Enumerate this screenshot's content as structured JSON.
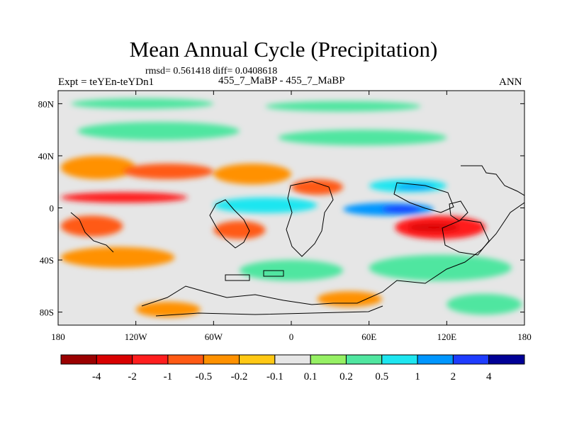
{
  "header": {
    "title": "Mean Annual Cycle (Precipitation)",
    "stats": "rmsd= 0.561418 diff= 0.0408618",
    "expt": "Expt = teYEn-teYDn1",
    "runs": "455_7_MaBP - 455_7_MaBP",
    "season": "ANN"
  },
  "chart_data": {
    "type": "heatmap",
    "title": "Mean Annual Cycle (Precipitation)",
    "subtitle": "rmsd= 0.561418 diff= 0.0408618",
    "xlabel": "",
    "ylabel": "",
    "xlim": [
      -180,
      180
    ],
    "ylim": [
      -90,
      90
    ],
    "x_ticks": [
      {
        "value": -180,
        "label": "180"
      },
      {
        "value": -120,
        "label": "120W"
      },
      {
        "value": -60,
        "label": "60W"
      },
      {
        "value": 0,
        "label": "0"
      },
      {
        "value": 60,
        "label": "60E"
      },
      {
        "value": 120,
        "label": "120E"
      },
      {
        "value": 180,
        "label": "180"
      }
    ],
    "y_ticks": [
      {
        "value": 80,
        "label": "80N"
      },
      {
        "value": 40,
        "label": "40N"
      },
      {
        "value": 0,
        "label": "0"
      },
      {
        "value": -40,
        "label": "40S"
      },
      {
        "value": -80,
        "label": "80S"
      }
    ],
    "colorbar": {
      "colors": [
        "#9a0000",
        "#d80000",
        "#ff1e1e",
        "#ff5a14",
        "#ff9100",
        "#ffc814",
        "#e6e6e6",
        "#96f064",
        "#50e6a0",
        "#1ee6f0",
        "#0096ff",
        "#1e3cff",
        "#000096"
      ],
      "labels": [
        "-4",
        "-2",
        "-1",
        "-0.5",
        "-0.2",
        "-0.1",
        "0.1",
        "0.2",
        "0.5",
        "1",
        "2",
        "4"
      ]
    },
    "regions": [
      {
        "name": "north-polar-green",
        "lon": [
          -170,
          -60
        ],
        "lat": [
          84,
          76
        ],
        "value": 0.3
      },
      {
        "name": "north-polar-green-east",
        "lon": [
          -20,
          100
        ],
        "lat": [
          82,
          74
        ],
        "value": 0.3
      },
      {
        "name": "north-midlat-green-1",
        "lon": [
          -165,
          -40
        ],
        "lat": [
          66,
          52
        ],
        "value": 0.25
      },
      {
        "name": "north-midlat-green-2",
        "lon": [
          -10,
          120
        ],
        "lat": [
          60,
          48
        ],
        "value": 0.25
      },
      {
        "name": "north-pacific-orange",
        "lon": [
          -178,
          -120
        ],
        "lat": [
          40,
          22
        ],
        "value": -0.3
      },
      {
        "name": "north-atlantic-red",
        "lon": [
          -130,
          -60
        ],
        "lat": [
          34,
          22
        ],
        "value": -0.8
      },
      {
        "name": "subtropical-orange-atlantic",
        "lon": [
          -60,
          0
        ],
        "lat": [
          34,
          18
        ],
        "value": -0.3
      },
      {
        "name": "tropical-north-red-west",
        "lon": [
          -178,
          -80
        ],
        "lat": [
          12,
          4
        ],
        "value": -1.2
      },
      {
        "name": "tropical-north-red-atlantic",
        "lon": [
          0,
          40
        ],
        "lat": [
          22,
          10
        ],
        "value": -1.0
      },
      {
        "name": "indian-ocean-north-cyan",
        "lon": [
          60,
          120
        ],
        "lat": [
          22,
          12
        ],
        "value": 0.7
      },
      {
        "name": "indian-ocean-north-blue",
        "lon": [
          80,
          110
        ],
        "lat": [
          18,
          14
        ],
        "value": 1.5
      },
      {
        "name": "equatorial-atlantic-cyan",
        "lon": [
          -60,
          20
        ],
        "lat": [
          8,
          -4
        ],
        "value": 0.8
      },
      {
        "name": "equatorial-blue-core",
        "lon": [
          40,
          110
        ],
        "lat": [
          4,
          -6
        ],
        "value": 1.5
      },
      {
        "name": "equatorial-dark-blue-core",
        "lon": [
          70,
          100
        ],
        "lat": [
          2,
          -4
        ],
        "value": 2.5
      },
      {
        "name": "south-indian-red",
        "lon": [
          80,
          150
        ],
        "lat": [
          -6,
          -24
        ],
        "value": -1.3
      },
      {
        "name": "south-indian-dark-red",
        "lon": [
          90,
          130
        ],
        "lat": [
          -12,
          -18
        ],
        "value": -2.5
      },
      {
        "name": "south-pacific-red",
        "lon": [
          -178,
          -130
        ],
        "lat": [
          -6,
          -22
        ],
        "value": -1.0
      },
      {
        "name": "south-atlantic-red",
        "lon": [
          -60,
          -20
        ],
        "lat": [
          -10,
          -24
        ],
        "value": -0.8
      },
      {
        "name": "south-midlat-orange",
        "lon": [
          -178,
          -90
        ],
        "lat": [
          -30,
          -46
        ],
        "value": -0.3
      },
      {
        "name": "south-midlat-green",
        "lon": [
          -40,
          40
        ],
        "lat": [
          -40,
          -56
        ],
        "value": 0.3
      },
      {
        "name": "south-indian-midlat-green",
        "lon": [
          60,
          170
        ],
        "lat": [
          -36,
          -56
        ],
        "value": 0.3
      },
      {
        "name": "antarctic-orange-1",
        "lon": [
          -120,
          -70
        ],
        "lat": [
          -72,
          -84
        ],
        "value": -0.3
      },
      {
        "name": "antarctic-orange-2",
        "lon": [
          20,
          70
        ],
        "lat": [
          -64,
          -76
        ],
        "value": -0.3
      },
      {
        "name": "antarctic-green",
        "lon": [
          120,
          178
        ],
        "lat": [
          -66,
          -82
        ],
        "value": 0.3
      }
    ]
  }
}
